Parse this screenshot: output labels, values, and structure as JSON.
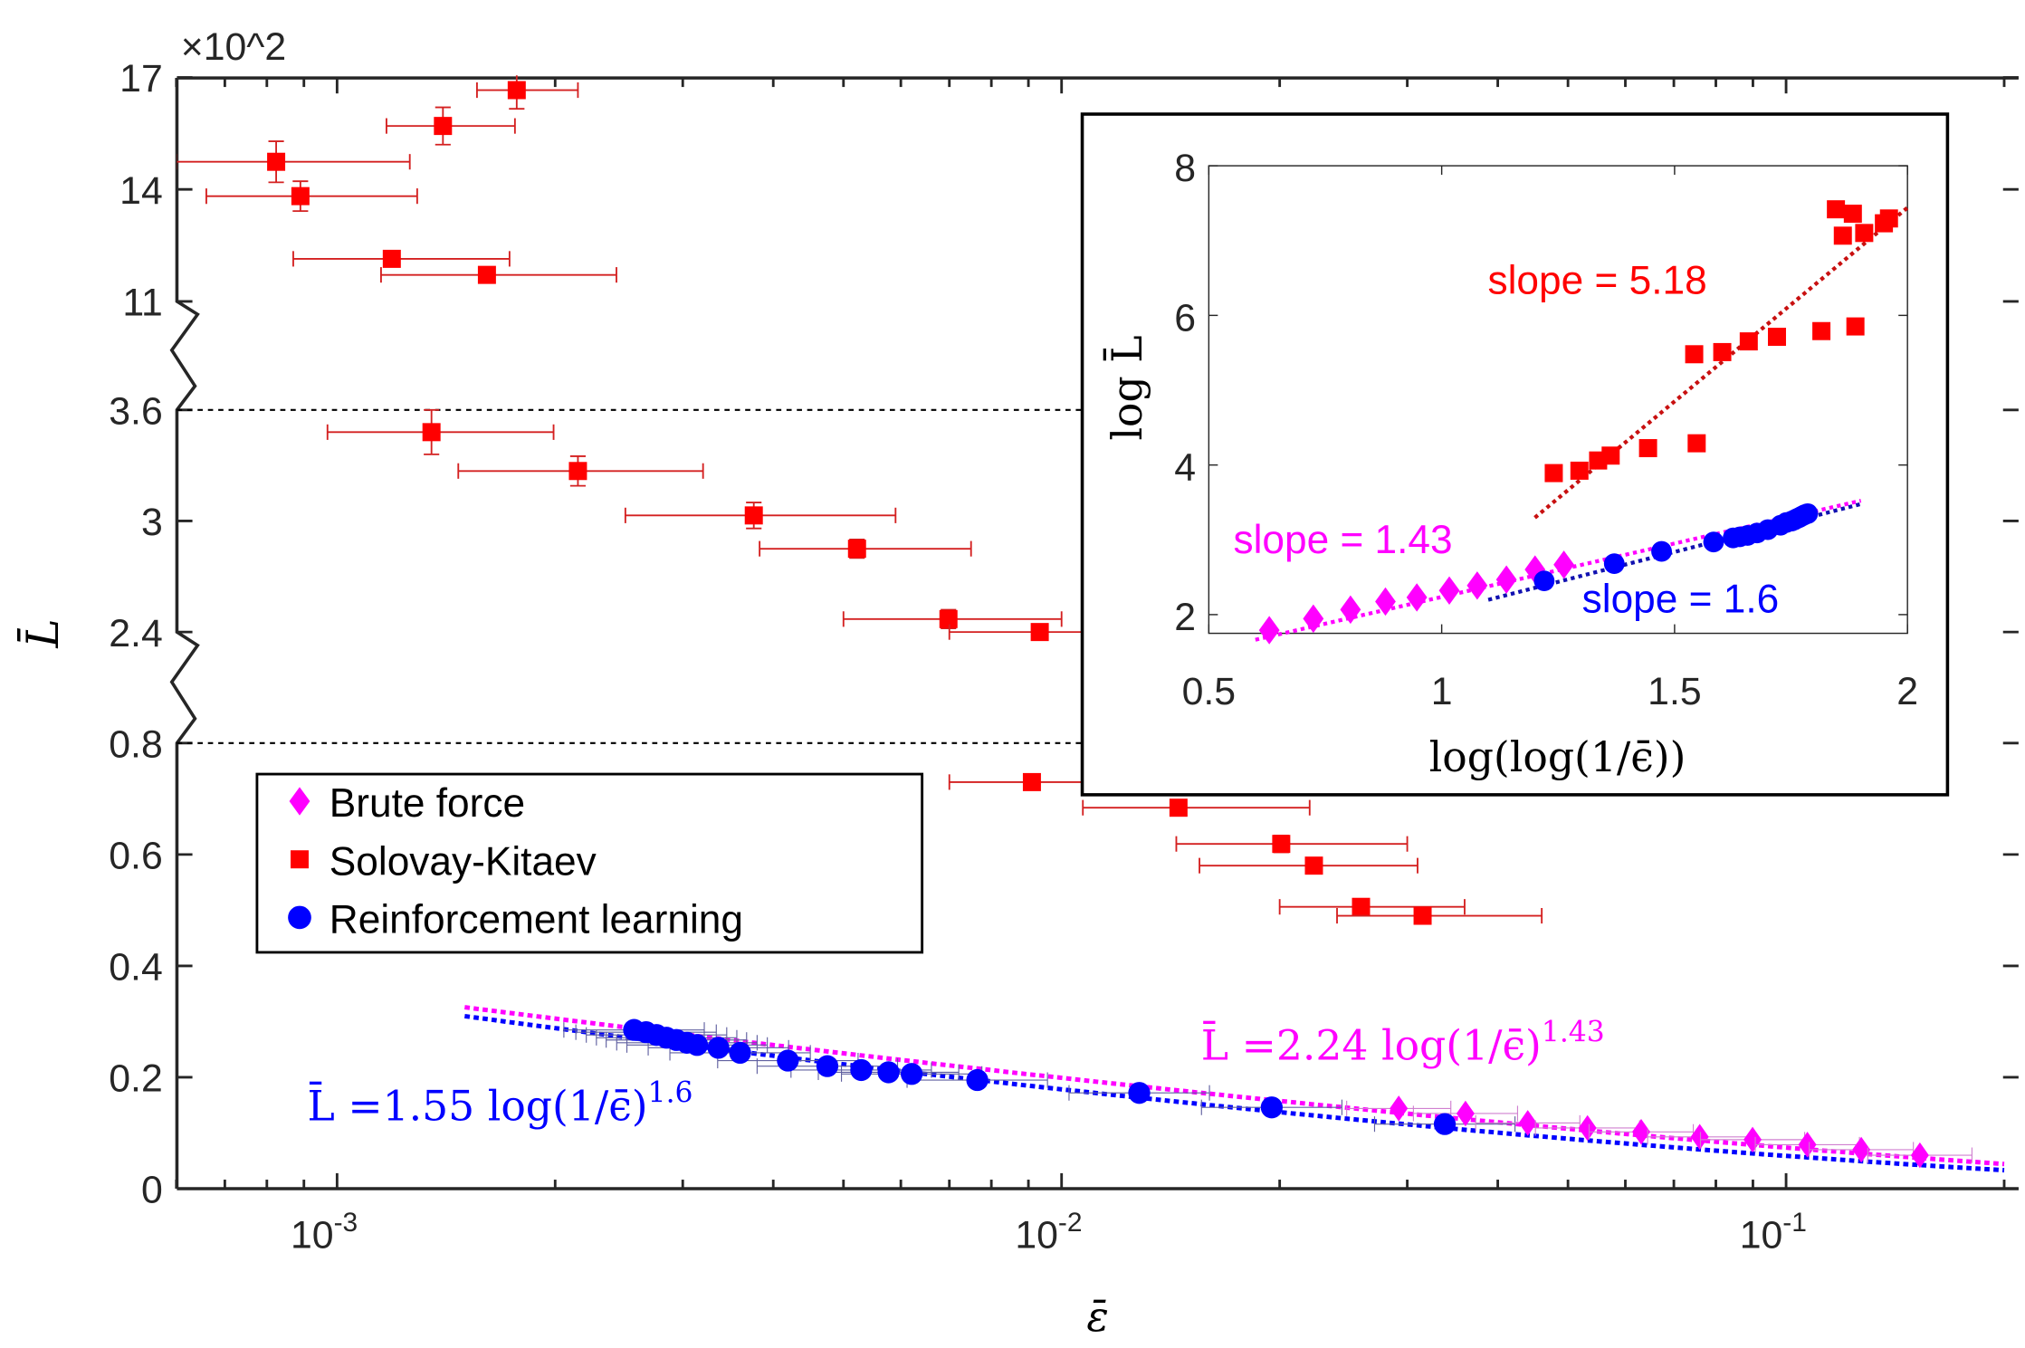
{
  "chart_data": {
    "type": "scatter",
    "main": {
      "xlabel": "ε̄",
      "ylabel": "L̄",
      "y_multiplier": "×10^2",
      "x_scale": "log",
      "xlim": [
        0.0006,
        0.2
      ],
      "x_ticks": [
        {
          "v": 0.001,
          "base": "10",
          "exp": "-3"
        },
        {
          "v": 0.01,
          "base": "10",
          "exp": "-2"
        },
        {
          "v": 0.1,
          "base": "10",
          "exp": "-1"
        }
      ],
      "y_axis_broken": true,
      "y_segments": [
        [
          0,
          0.8
        ],
        [
          2.4,
          3.6
        ],
        [
          11,
          17
        ]
      ],
      "y_ticks": [
        "0",
        "0.2",
        "0.4",
        "0.6",
        "0.8",
        "2.4",
        "3",
        "3.6",
        "11",
        "14",
        "17"
      ],
      "y_tick_values": [
        0,
        0.2,
        0.4,
        0.6,
        0.8,
        2.4,
        3,
        3.6,
        11,
        14,
        17
      ],
      "dashed_lines": [
        3.6,
        0.8
      ],
      "legend": {
        "position": "lower-left",
        "entries": [
          "Brute force",
          "Solovay-Kitaev",
          "Reinforcement learning"
        ]
      },
      "series": [
        {
          "name": "Brute force",
          "color": "#ff00ff",
          "marker": "diamond",
          "x": [
            0.0292,
            0.0361,
            0.044,
            0.0532,
            0.0631,
            0.076,
            0.0899,
            0.107,
            0.127,
            0.153
          ],
          "y": [
            0.144,
            0.135,
            0.118,
            0.109,
            0.102,
            0.093,
            0.088,
            0.079,
            0.07,
            0.06
          ],
          "xerr_frac": 0.18
        },
        {
          "name": "Solovay-Kitaev",
          "color": "#ff0000",
          "marker": "square",
          "x": [
            0.00177,
            0.0014,
            0.000824,
            0.00089,
            0.00119,
            0.00161,
            0.00135,
            0.00215,
            0.00376,
            0.00522,
            0.00698,
            0.00933,
            0.0091,
            0.0145,
            0.0201,
            0.0223,
            0.0259,
            0.0315
          ],
          "y": [
            16.66,
            15.7,
            14.74,
            13.82,
            12.14,
            11.71,
            3.48,
            3.27,
            3.03,
            2.85,
            2.47,
            2.4,
            0.73,
            0.684,
            0.619,
            0.58,
            0.506,
            0.49
          ],
          "xlo": [
            0.00156,
            0.00117,
            0.0006,
            0.00066,
            0.00087,
            0.00115,
            0.00097,
            0.00147,
            0.0025,
            0.00383,
            0.005,
            0.007,
            0.007,
            0.0107,
            0.0144,
            0.0155,
            0.02,
            0.024
          ],
          "xhi": [
            0.00215,
            0.00176,
            0.00126,
            0.00129,
            0.00173,
            0.00243,
            0.00199,
            0.0032,
            0.0059,
            0.0075,
            0.01,
            0.0135,
            0.0127,
            0.022,
            0.03,
            0.031,
            0.036,
            0.046
          ],
          "yerr": [
            0.5,
            0.5,
            0.55,
            0.4,
            0.2,
            0.2,
            0.12,
            0.08,
            0.07,
            0.05,
            0.05,
            0.03,
            0.01,
            0.01,
            0.015,
            0.01,
            0.01,
            0.005
          ]
        },
        {
          "name": "Reinforcement learning",
          "color": "#0000ff",
          "marker": "circle",
          "x": [
            0.00257,
            0.00267,
            0.00276,
            0.00285,
            0.00294,
            0.00304,
            0.00314,
            0.00336,
            0.0036,
            0.00419,
            0.00475,
            0.00529,
            0.00577,
            0.00621,
            0.00765,
            0.0128,
            0.0195,
            0.0338
          ],
          "y": [
            0.285,
            0.281,
            0.276,
            0.271,
            0.267,
            0.262,
            0.258,
            0.253,
            0.244,
            0.23,
            0.22,
            0.213,
            0.209,
            0.206,
            0.195,
            0.172,
            0.146,
            0.116
          ],
          "xerr_frac": 0.25,
          "yerr": 0.012
        }
      ],
      "fits": [
        {
          "name": "brute-force-fit",
          "color": "#ff00ff",
          "a": 2.24,
          "b": 1.43,
          "label_main": "L̄ =2.24 log(1/ϵ̄)",
          "label_exp": "1.43"
        },
        {
          "name": "rl-fit",
          "color": "#0000ff",
          "a": 1.55,
          "b": 1.6,
          "label_main": "L̄ =1.55 log(1/ϵ̄)",
          "label_exp": "1.6"
        }
      ]
    },
    "inset": {
      "xlabel": "log(log(1/ϵ̄))",
      "ylabel": "log L̄",
      "xlim": [
        0.5,
        2
      ],
      "ylim": [
        1.75,
        8
      ],
      "x_ticks": [
        "0.5",
        "1",
        "1.5",
        "2"
      ],
      "x_tick_values": [
        0.5,
        1,
        1.5,
        2
      ],
      "y_ticks": [
        "2",
        "4",
        "6",
        "8"
      ],
      "y_tick_values": [
        2,
        4,
        6,
        8
      ],
      "slopes": [
        {
          "label": "slope = 5.18",
          "color": "#ff0000",
          "slope": 5.18,
          "intercept": -2.92,
          "range": [
            1.2,
            2.0
          ]
        },
        {
          "label": "slope = 1.43",
          "color": "#ff00ff",
          "slope": 1.43,
          "intercept": 0.806,
          "range": [
            0.6,
            1.9
          ]
        },
        {
          "label": "slope = 1.6",
          "color": "#0000ff",
          "slope": 1.6,
          "intercept": 0.438,
          "range": [
            1.1,
            1.9
          ]
        }
      ]
    }
  }
}
